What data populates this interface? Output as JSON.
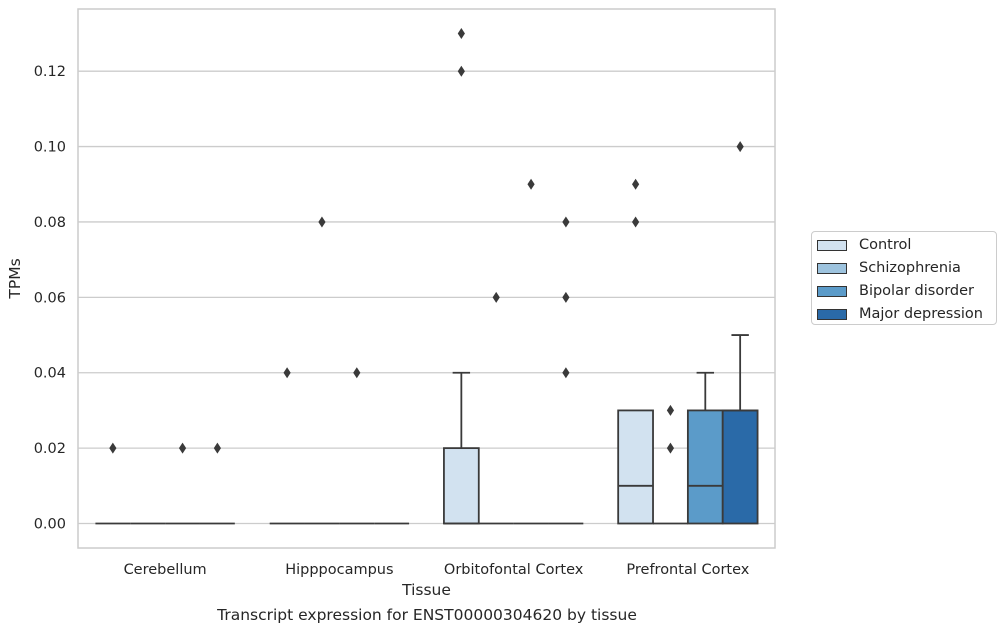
{
  "chart_data": {
    "type": "box",
    "title": "",
    "caption": "Transcript expression for ENST00000304620 by tissue",
    "xlabel": "Tissue",
    "ylabel": "TPMs",
    "ylim": [
      -0.0065,
      0.1365
    ],
    "yticks": [
      "0.00",
      "0.02",
      "0.04",
      "0.06",
      "0.08",
      "0.10",
      "0.12"
    ],
    "categories": [
      "Cerebellum",
      "Hipppocampus",
      "Orbitofontal Cortex",
      "Prefrontal Cortex"
    ],
    "grid": "horizontal",
    "legend_position": "right",
    "series": [
      {
        "name": "Control",
        "color": "#d2e2f0",
        "boxes": [
          {
            "q1": 0,
            "median": 0,
            "q3": 0,
            "whislo": 0,
            "whishi": 0,
            "fliers": [
              0.02
            ]
          },
          {
            "q1": 0,
            "median": 0,
            "q3": 0,
            "whislo": 0,
            "whishi": 0,
            "fliers": [
              0.04
            ]
          },
          {
            "q1": 0,
            "median": 0,
            "q3": 0.02,
            "whislo": 0,
            "whishi": 0.04,
            "fliers": [
              0.12,
              0.13
            ]
          },
          {
            "q1": 0,
            "median": 0.01,
            "q3": 0.03,
            "whislo": 0,
            "whishi": 0.03,
            "fliers": [
              0.08,
              0.09
            ]
          }
        ]
      },
      {
        "name": "Schizophrenia",
        "color": "#9dc3de",
        "boxes": [
          {
            "q1": 0,
            "median": 0,
            "q3": 0,
            "whislo": 0,
            "whishi": 0,
            "fliers": []
          },
          {
            "q1": 0,
            "median": 0,
            "q3": 0,
            "whislo": 0,
            "whishi": 0,
            "fliers": [
              0.08
            ]
          },
          {
            "q1": 0,
            "median": 0,
            "q3": 0,
            "whislo": 0,
            "whishi": 0,
            "fliers": [
              0.06
            ]
          },
          {
            "q1": 0,
            "median": 0,
            "q3": 0,
            "whislo": 0,
            "whishi": 0,
            "fliers": [
              0.02,
              0.03
            ]
          }
        ]
      },
      {
        "name": "Bipolar disorder",
        "color": "#5b9bc9",
        "boxes": [
          {
            "q1": 0,
            "median": 0,
            "q3": 0,
            "whislo": 0,
            "whishi": 0,
            "fliers": [
              0.02
            ]
          },
          {
            "q1": 0,
            "median": 0,
            "q3": 0,
            "whislo": 0,
            "whishi": 0,
            "fliers": [
              0.04
            ]
          },
          {
            "q1": 0,
            "median": 0,
            "q3": 0,
            "whislo": 0,
            "whishi": 0,
            "fliers": [
              0.09
            ]
          },
          {
            "q1": 0,
            "median": 0.01,
            "q3": 0.03,
            "whislo": 0,
            "whishi": 0.04,
            "fliers": []
          }
        ]
      },
      {
        "name": "Major depression",
        "color": "#2a6aa8",
        "boxes": [
          {
            "q1": 0,
            "median": 0,
            "q3": 0,
            "whislo": 0,
            "whishi": 0,
            "fliers": [
              0.02
            ]
          },
          {
            "q1": 0,
            "median": 0,
            "q3": 0,
            "whislo": 0,
            "whishi": 0,
            "fliers": []
          },
          {
            "q1": 0,
            "median": 0,
            "q3": 0,
            "whislo": 0,
            "whishi": 0,
            "fliers": [
              0.04,
              0.06,
              0.08
            ]
          },
          {
            "q1": 0,
            "median": 0.03,
            "q3": 0.03,
            "whislo": 0,
            "whishi": 0.05,
            "fliers": [
              0.1
            ]
          }
        ]
      }
    ]
  }
}
